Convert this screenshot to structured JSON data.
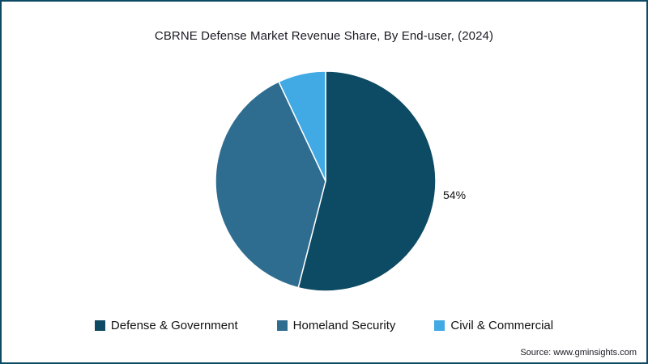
{
  "chart_data": {
    "type": "pie",
    "title": "CBRNE Defense Market Revenue Share, By End-user, (2024)",
    "start_angle_deg": 0,
    "direction": "clockwise",
    "legend_position": "bottom",
    "slices": [
      {
        "label": "Defense & Government",
        "value": 54,
        "color": "#0d4a63",
        "data_label": "54%"
      },
      {
        "label": "Homeland Security",
        "value": 39,
        "color": "#2e6d90",
        "data_label": ""
      },
      {
        "label": "Civil & Commercial",
        "value": 7,
        "color": "#41aae4",
        "data_label": ""
      }
    ]
  },
  "source": {
    "text": "Source: www.gminsights.com"
  }
}
